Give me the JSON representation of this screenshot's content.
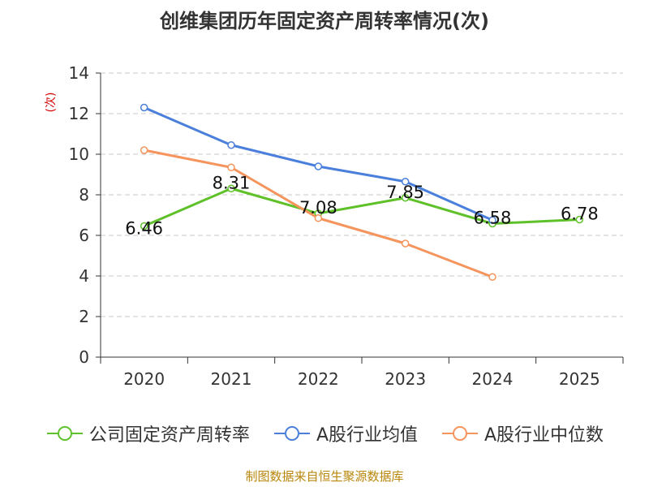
{
  "chart_data": {
    "type": "line",
    "title": "创维集团历年固定资产周转率情况(次)",
    "ylabel": "(次)",
    "xlabel": "",
    "categories": [
      "2020",
      "2021",
      "2022",
      "2023",
      "2024",
      "2025"
    ],
    "ylim": [
      0,
      14
    ],
    "yticks": [
      0,
      2,
      4,
      6,
      8,
      10,
      12,
      14
    ],
    "grid": true,
    "legend_position": "bottom",
    "series": [
      {
        "name": "公司固定资产周转率",
        "color": "#5fc129",
        "values": [
          6.46,
          8.31,
          7.08,
          7.85,
          6.58,
          6.78
        ],
        "labels": [
          "6.46",
          "8.31",
          "7.08",
          "7.85",
          "6.58",
          "6.78"
        ],
        "show_labels": true
      },
      {
        "name": "A股行业均值",
        "color": "#4a7fdb",
        "values": [
          12.3,
          10.45,
          9.4,
          8.65,
          6.75,
          null
        ],
        "show_labels": false
      },
      {
        "name": "A股行业中位数",
        "color": "#f5945c",
        "values": [
          10.2,
          9.35,
          6.85,
          5.6,
          3.95,
          null
        ],
        "show_labels": false
      }
    ]
  },
  "source": "制图数据来自恒生聚源数据库"
}
